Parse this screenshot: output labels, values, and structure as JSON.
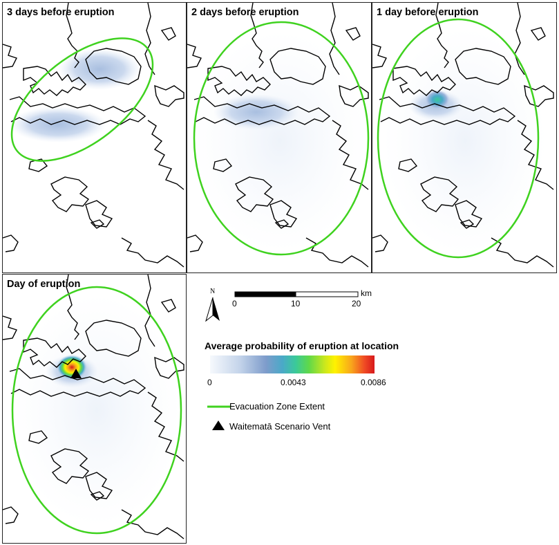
{
  "panels": [
    {
      "title": "3 days before eruption"
    },
    {
      "title": "2 days before eruption"
    },
    {
      "title": "1 day before eruption"
    },
    {
      "title": "Day of eruption"
    }
  ],
  "legend": {
    "north_label": "N",
    "scale": {
      "ticks": [
        "0",
        "10",
        "20"
      ],
      "unit": "km"
    },
    "colorbar": {
      "title": "Average probability of eruption at location",
      "ticks": [
        "0",
        "0.0043",
        "0.0086"
      ],
      "min": 0,
      "max": 0.0086
    },
    "evacuation_label": "Evacuation Zone Extent",
    "vent_label": "Waitematā Scenario Vent"
  },
  "colors": {
    "evacuation_zone": "#3fd21f",
    "coastline": "#000000",
    "probability_low": "#c4d4ea",
    "probability_high": "#d7191c"
  },
  "icons": {
    "north_arrow": "north-arrow-icon",
    "vent": "triangle-icon"
  }
}
